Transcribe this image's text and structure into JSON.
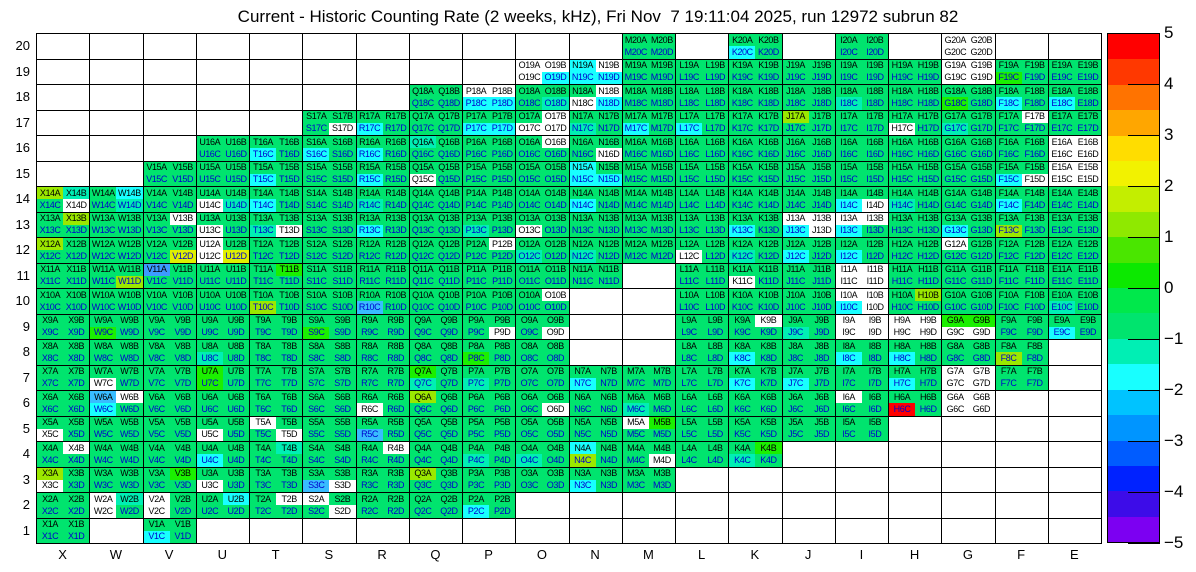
{
  "title": "Current - Historic Counting Rate (2 weeks, kHz), Fri Nov  7 19:11:04 2025, run 12972 subrun 82",
  "chart_data": {
    "type": "heatmap",
    "title": "Current - Historic Counting Rate (2 weeks, kHz), Fri Nov  7 19:11:04 2025, run 12972 subrun 82",
    "x_categories": [
      "X",
      "W",
      "V",
      "U",
      "T",
      "S",
      "R",
      "Q",
      "P",
      "O",
      "N",
      "M",
      "L",
      "K",
      "J",
      "I",
      "H",
      "G",
      "F",
      "E"
    ],
    "y_categories": [
      20,
      19,
      18,
      17,
      16,
      15,
      14,
      13,
      12,
      11,
      10,
      9,
      8,
      7,
      6,
      5,
      4,
      3,
      2,
      1
    ],
    "sublabels": [
      "A",
      "B",
      "C",
      "D"
    ],
    "grid_on": true,
    "legend_position": "right",
    "colorbar": {
      "min": -5,
      "max": 5,
      "ticks": [
        "5",
        "4",
        "3",
        "2",
        "1",
        "0",
        "−1",
        "−2",
        "−3",
        "−4",
        "−5"
      ],
      "band_colors_top_to_bottom": [
        "#FF0000",
        "#FF3800",
        "#FF7300",
        "#FFA600",
        "#FFDD00",
        "#F2F200",
        "#C3EE00",
        "#8FE900",
        "#4AE600",
        "#0CE900",
        "#00E84B",
        "#00E46E",
        "#00EFB4",
        "#18FFFF",
        "#00C3FF",
        "#0095FF",
        "#005CFF",
        "#0022FF",
        "#3D0CE8",
        "#7C00F2"
      ]
    },
    "code_colors": {
      "g": "#00E46E",
      "G": "#1BEF00",
      "y": "#9BE800",
      "Y": "#E0F000",
      "t": "#00EFB4",
      "c": "#18FFFF",
      "b": "#38BCFF",
      "B": "#3D9BFF",
      "r": "#FF0000",
      "w": "#FFFFFF"
    },
    "code_values_kHz": {
      "g": -0.3,
      "G": 0.7,
      "y": 1.7,
      "Y": 2.2,
      "t": -1.2,
      "c": -1.8,
      "b": -2.3,
      "B": -2.9,
      "r": 4.8,
      "w": null
    },
    "label_text": {
      "top_rows": "#000000",
      "bottom_rows": "#0000CD",
      "on_white": "#000000"
    },
    "cells": {
      "X": {
        "14": "ytgw",
        "13": "gygg",
        "12": "yggg",
        "11": "gggg",
        "10": "gggg",
        "9": "gggg",
        "8": "gggg",
        "7": "gggg",
        "6": "gggg",
        "5": "ggwg",
        "4": "gwgg",
        "3": "ygwg",
        "2": "gggg",
        "1": "gggg"
      },
      "W": {
        "14": "gcgt",
        "13": "gggg",
        "12": "gggg",
        "11": "gggy",
        "10": "gggg",
        "9": "ggGg",
        "8": "gggg",
        "7": "ggwg",
        "6": "bwcg",
        "5": "gggg",
        "4": "gggg",
        "3": "gggg",
        "2": "wtwg"
      },
      "V": {
        "15": "gggg",
        "14": "gggg",
        "13": "gwgg",
        "12": "gggY",
        "11": "Bggg",
        "10": "gggg",
        "9": "gggg",
        "8": "gggg",
        "7": "gggg",
        "6": "gggg",
        "5": "gggg",
        "4": "gggg",
        "3": "gGgg",
        "2": "wgwg",
        "1": "ggcg"
      },
      "U": {
        "16": "gggg",
        "15": "gggg",
        "14": "ggwt",
        "13": "ggwg",
        "12": "wgwY",
        "11": "gggg",
        "10": "gggg",
        "9": "gggg",
        "8": "ggtg",
        "7": "GgGg",
        "6": "gggg",
        "5": "ggwg",
        "4": "ggcg",
        "3": "ggwg",
        "2": "gcgg"
      },
      "T": {
        "16": "ggcg",
        "15": "ggcg",
        "14": "ggcg",
        "13": "ggtw",
        "12": "gggg",
        "11": "gGgg",
        "10": "ggyg",
        "9": "gggg",
        "8": "gggg",
        "7": "gggg",
        "6": "gggg",
        "5": "wggw",
        "4": "gtgg",
        "3": "gggg",
        "2": "gwgg"
      },
      "S": {
        "17": "gggw",
        "16": "ggcg",
        "15": "gggg",
        "14": "gggg",
        "13": "gggg",
        "12": "gggg",
        "11": "gggg",
        "10": "gggg",
        "9": "ggGg",
        "8": "gggg",
        "7": "gggg",
        "6": "gggg",
        "5": "gggg",
        "4": "gggg",
        "3": "ggbw",
        "2": "wggw"
      },
      "R": {
        "17": "ggcg",
        "16": "ggcg",
        "15": "ggcg",
        "14": "ggtg",
        "13": "ggcg",
        "12": "gggg",
        "11": "gggg",
        "10": "ggbg",
        "9": "gggg",
        "8": "gggg",
        "7": "gggg",
        "6": "ggwg",
        "5": "ggbg",
        "4": "gwgg",
        "3": "gggg",
        "2": "gggg"
      },
      "Q": {
        "18": "gggg",
        "17": "gggg",
        "16": "tggg",
        "15": "ggwg",
        "14": "gggg",
        "13": "gggg",
        "12": "gggg",
        "11": "gggg",
        "10": "gggg",
        "9": "gggg",
        "8": "gggg",
        "7": "Ggtg",
        "6": "yggg",
        "5": "gggg",
        "4": "gggg",
        "3": "yggg",
        "2": "gggg"
      },
      "P": {
        "18": "wwcc",
        "17": "ggcc",
        "16": "gggg",
        "15": "gggg",
        "14": "gggg",
        "13": "ggtg",
        "12": "gwgg",
        "11": "gggg",
        "10": "gggg",
        "9": "gggw",
        "8": "ggGg",
        "7": "ggtg",
        "6": "gggg",
        "5": "gggg",
        "4": "ggtg",
        "3": "gggg",
        "2": "ggcg"
      },
      "O": {
        "19": "wwwc",
        "18": "gggt",
        "17": "gwww",
        "16": "gwgg",
        "15": "gggg",
        "14": "gggg",
        "13": "ggwg",
        "12": "ggtg",
        "11": "gggg",
        "10": "gwgg",
        "9": "gggw",
        "8": "gggg",
        "7": "gggg",
        "6": "gggw",
        "5": "gggg",
        "4": "ggtg",
        "3": "gggg"
      },
      "N": {
        "19": "cwcc",
        "18": "gwwc",
        "17": "ggtg",
        "16": "gggw",
        "15": "cgcc",
        "14": "ggcg",
        "13": "gggg",
        "12": "ggtg",
        "11": "gggg",
        "7": "ggcg",
        "6": "gggg",
        "5": "gggg",
        "4": "cgyg",
        "3": "ggcg"
      },
      "M": {
        "20": "gggg",
        "19": "gggg",
        "18": "gggg",
        "17": "ggcg",
        "16": "gggg",
        "15": "gggg",
        "14": "gggg",
        "13": "gggg",
        "12": "gggg",
        "7": "gggg",
        "6": "ggtg",
        "5": "wGgg",
        "4": "gggw",
        "3": "gggg"
      },
      "L": {
        "19": "gggg",
        "18": "gggg",
        "17": "ggcg",
        "16": "gggg",
        "15": "gggg",
        "14": "gggg",
        "13": "gggg",
        "12": "ggwg",
        "11": "gggg",
        "10": "gggg",
        "9": "gggg",
        "8": "gggg",
        "7": "gggg",
        "6": "gggg",
        "5": "gggg",
        "4": "gggg"
      },
      "K": {
        "20": "ggcg",
        "19": "gggg",
        "18": "gggg",
        "17": "gggg",
        "16": "gggg",
        "15": "gggg",
        "14": "gggg",
        "13": "ggcg",
        "12": "ggtg",
        "11": "ggwg",
        "10": "gggg",
        "9": "gwgg",
        "8": "ggcg",
        "7": "ggcg",
        "6": "gggg",
        "5": "gggg",
        "4": "gGtg"
      },
      "J": {
        "19": "gggg",
        "18": "gggg",
        "17": "yggg",
        "16": "gggg",
        "15": "gggg",
        "14": "gggg",
        "13": "wwcw",
        "12": "ggcg",
        "11": "gggg",
        "10": "gggg",
        "9": "ggtg",
        "8": "gggg",
        "7": "ggcg",
        "6": "gggg",
        "5": "gggg"
      },
      "I": {
        "20": "gggg",
        "19": "gggg",
        "18": "ggtg",
        "17": "gggg",
        "16": "gggg",
        "15": "gggg",
        "14": "ggcw",
        "13": "wwcg",
        "12": "ggcg",
        "11": "wwww",
        "10": "wwcw",
        "9": "wwww",
        "8": "ggcg",
        "7": "gggg",
        "6": "wggg",
        "5": "gggg"
      },
      "H": {
        "19": "gggg",
        "18": "gggg",
        "17": "ggwg",
        "16": "gggg",
        "15": "gggg",
        "14": "ggtg",
        "13": "gggg",
        "12": "gggg",
        "11": "gggg",
        "10": "gygg",
        "9": "wwww",
        "8": "ggcg",
        "7": "ggcg",
        "6": "ggrg"
      },
      "G": {
        "20": "wwww",
        "19": "wwww",
        "18": "ggGg",
        "17": "ggtg",
        "16": "gggg",
        "15": "gggg",
        "14": "gggg",
        "13": "ggcg",
        "12": "wggg",
        "11": "gggg",
        "10": "gggg",
        "9": "GGww",
        "8": "gggg",
        "7": "wwww",
        "6": "wwww"
      },
      "F": {
        "19": "ggGg",
        "18": "ggcg",
        "17": "gwgg",
        "16": "gggg",
        "15": "ggcw",
        "14": "ggcg",
        "13": "ggyg",
        "12": "gggg",
        "11": "gggg",
        "10": "gggg",
        "9": "gggg",
        "8": "ggyg",
        "7": "gggg"
      },
      "E": {
        "19": "gggg",
        "18": "ggcg",
        "17": "gggg",
        "16": "wwww",
        "15": "wwww",
        "14": "gggg",
        "13": "gggg",
        "12": "gggg",
        "11": "gggg",
        "10": "ggtg",
        "9": "ggcg"
      }
    }
  }
}
